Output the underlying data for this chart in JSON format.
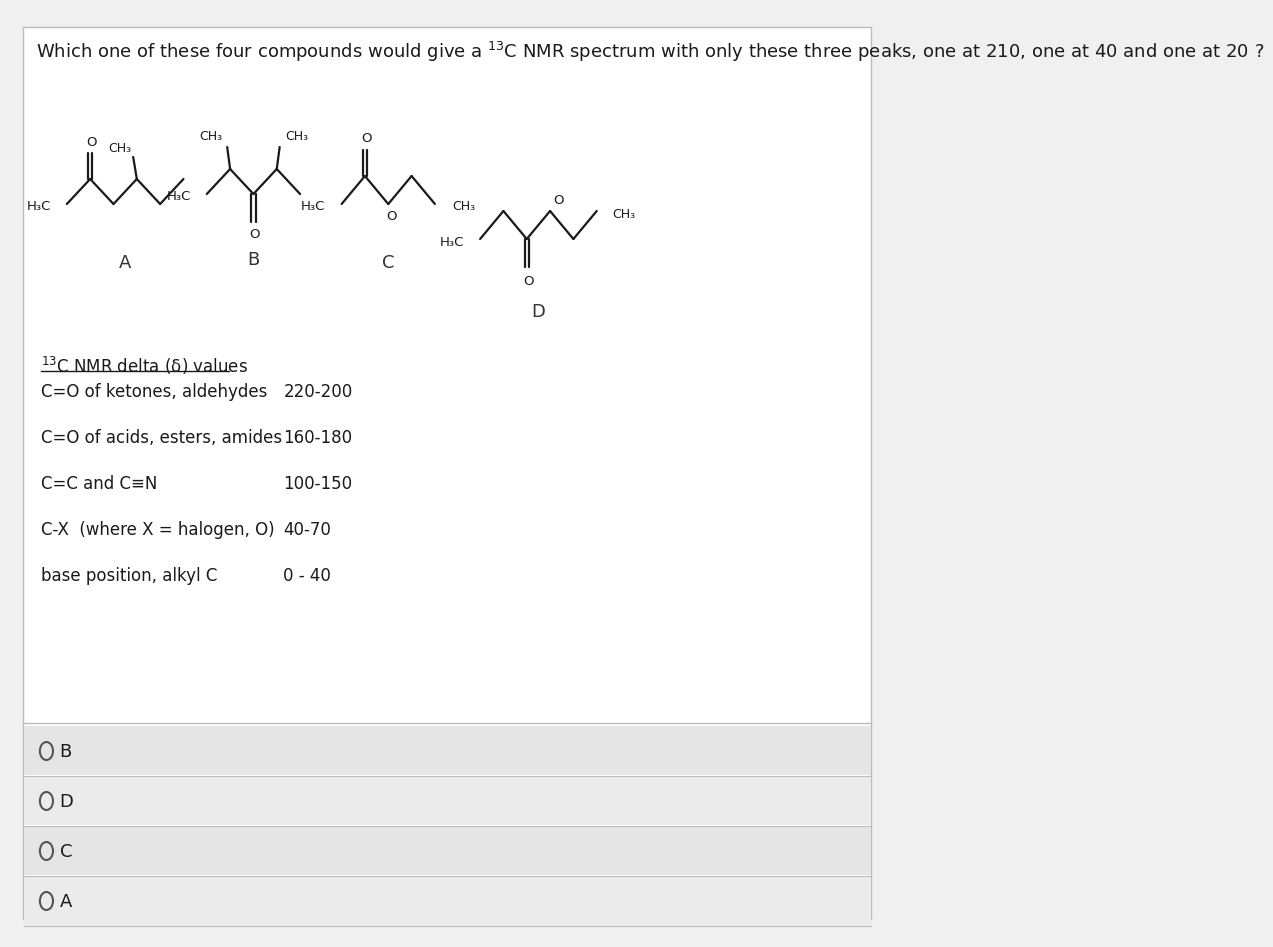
{
  "title": "Which one of these four compounds would give a $^{13}$C NMR spectrum with only these three peaks, one at 210, one at 40 and one at 20 ?",
  "background_color": "#f0f0f0",
  "panel_bg": "#ffffff",
  "nmr_table_header": "$^{13}$C NMR delta (δ) values",
  "nmr_rows": [
    [
      "C=O of ketones, aldehydes",
      "220-200"
    ],
    [
      "C=O of acids, esters, amides",
      "160-180"
    ],
    [
      "C=C and C≡N",
      "100-150"
    ],
    [
      "C-X  (where X = halogen, O)",
      "40-70"
    ],
    [
      "base position, alkyl C",
      "0 - 40"
    ]
  ],
  "answer_options": [
    "B",
    "D",
    "C",
    "A"
  ],
  "compound_labels": [
    "A",
    "B",
    "C",
    "D"
  ]
}
